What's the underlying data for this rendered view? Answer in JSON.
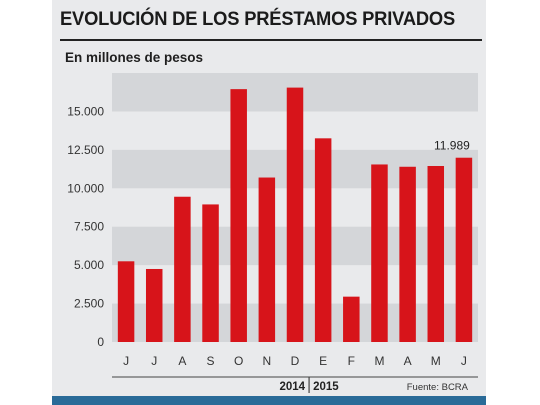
{
  "title": "EVOLUCIÓN DE LOS PRÉSTAMOS PRIVADOS",
  "subtitle": "En millones de pesos",
  "source": "Fuente: BCRA",
  "colors": {
    "bar": "#d7141a",
    "panel": "#e9eaec",
    "band": "#d4d6d9",
    "accent_bar": "#2a6b98"
  },
  "chart_data": {
    "type": "bar",
    "title": "EVOLUCIÓN DE LOS PRÉSTAMOS PRIVADOS",
    "xlabel": "",
    "ylabel": "En millones de pesos",
    "categories": [
      "J",
      "J",
      "A",
      "S",
      "O",
      "N",
      "D",
      "E",
      "F",
      "M",
      "A",
      "M",
      "J"
    ],
    "values": [
      5250,
      4750,
      9450,
      8950,
      16450,
      10700,
      16550,
      13250,
      2950,
      11550,
      11400,
      11450,
      11989
    ],
    "ylim": [
      0,
      17500
    ],
    "yticks": [
      0,
      2500,
      5000,
      7500,
      10000,
      12500,
      15000
    ],
    "ytick_labels": [
      "0",
      "2.500",
      "5.000",
      "7.500",
      "10.000",
      "12.500",
      "15.000"
    ],
    "grid": "alternating horizontal bands",
    "data_labels": [
      {
        "index": 12,
        "text": "11.989"
      }
    ],
    "groups": [
      {
        "label": "2014",
        "start": 0,
        "end": 6
      },
      {
        "label": "2015",
        "start": 7,
        "end": 12
      }
    ]
  }
}
